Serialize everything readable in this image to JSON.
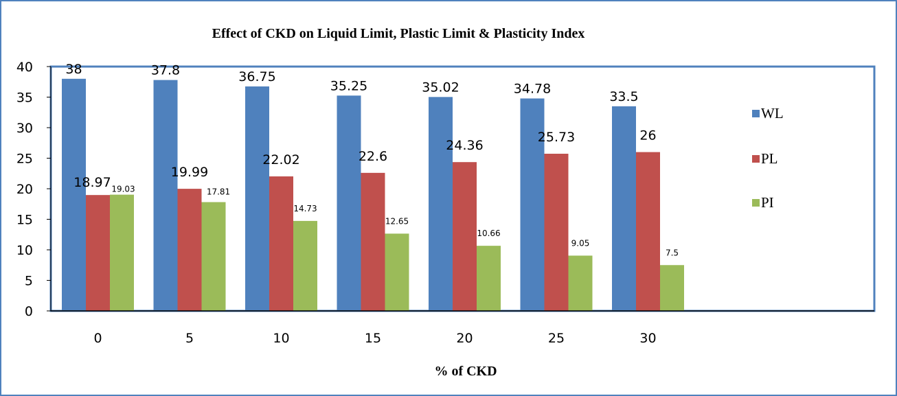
{
  "chart_data": {
    "type": "bar",
    "title": "Effect of CKD on Liquid Limit, Plastic Limit & Plasticity Index",
    "xlabel": "% of CKD",
    "ylabel": "",
    "categories": [
      "0",
      "5",
      "10",
      "15",
      "20",
      "25",
      "30"
    ],
    "ylim": [
      0,
      40
    ],
    "yticks": [
      "0",
      "5",
      "10",
      "15",
      "20",
      "25",
      "30",
      "35",
      "40"
    ],
    "grid": false,
    "legend_position": "right",
    "series": [
      {
        "name": "WL",
        "color": "#4f81bd",
        "values": [
          38,
          37.8,
          36.75,
          35.25,
          35.02,
          34.78,
          33.5
        ],
        "labels": [
          "38",
          "37.8",
          "36.75",
          "35.25",
          "35.02",
          "34.78",
          "33.5"
        ]
      },
      {
        "name": "PL",
        "color": "#c0504d",
        "values": [
          18.97,
          19.99,
          22.02,
          22.6,
          24.36,
          25.73,
          26
        ],
        "labels": [
          "18.97",
          "19.99",
          "22.02",
          "22.6",
          "24.36",
          "25.73",
          "26"
        ]
      },
      {
        "name": "PI",
        "color": "#9bbb59",
        "values": [
          19.03,
          17.81,
          14.73,
          12.65,
          10.66,
          9.05,
          7.5
        ],
        "labels": [
          "19.03",
          "17.81",
          "14.73",
          "12.65",
          "10.66",
          "9.05",
          "7.5"
        ]
      }
    ]
  }
}
